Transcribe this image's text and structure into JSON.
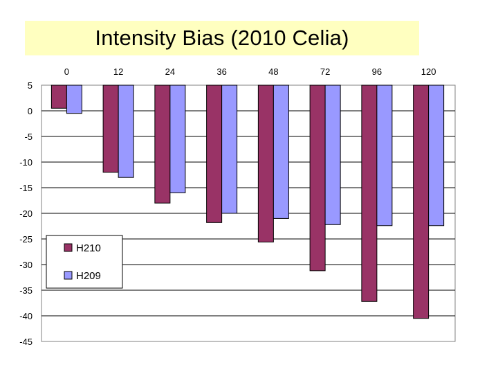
{
  "chart_data": {
    "type": "bar",
    "title": "Intensity Bias (2010 Celia)",
    "xlabel": "",
    "ylabel": "",
    "categories": [
      "0",
      "12",
      "24",
      "36",
      "48",
      "72",
      "96",
      "120"
    ],
    "x_axis_position": "top",
    "ylim": [
      -45,
      5
    ],
    "yticks": [
      "5",
      "0",
      "-5",
      "-10",
      "-15",
      "-20",
      "-25",
      "-30",
      "-35",
      "-40",
      "-45"
    ],
    "grid": "horizontal",
    "legend": "left",
    "series": [
      {
        "name": "H210",
        "color": "#993366",
        "values": [
          0.5,
          -12,
          -18,
          -21.8,
          -25.6,
          -31.2,
          -37.2,
          -40.5
        ]
      },
      {
        "name": "H209",
        "color": "#9999ff",
        "values": [
          -0.5,
          -13,
          -16,
          -20,
          -21,
          -22.2,
          -22.4,
          -22.4
        ]
      }
    ]
  }
}
